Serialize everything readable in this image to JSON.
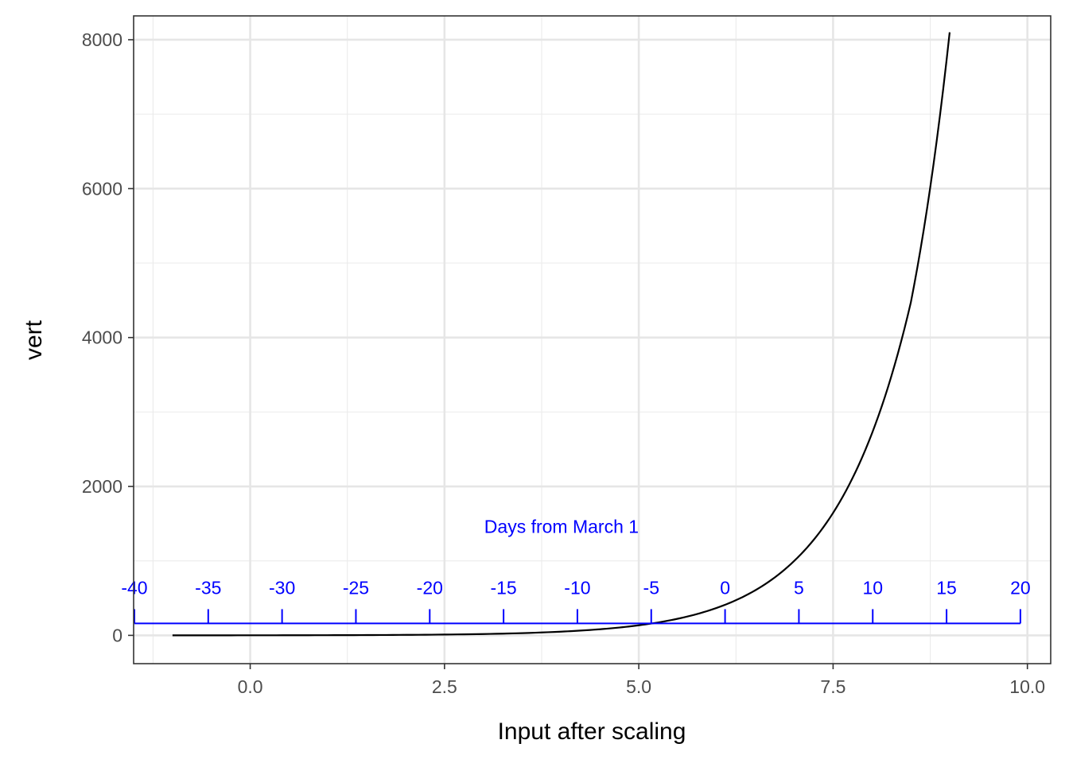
{
  "chart_data": {
    "type": "line",
    "xlabel": "Input after scaling",
    "ylabel": "vert",
    "xlim": [
      -1.5,
      10.3
    ],
    "ylim": [
      -380,
      8320
    ],
    "x_ticks": [
      0.0,
      2.5,
      5.0,
      7.5,
      10.0
    ],
    "x_tick_labels": [
      "0.0",
      "2.5",
      "5.0",
      "7.5",
      "10.0"
    ],
    "y_ticks": [
      0,
      2000,
      4000,
      6000,
      8000
    ],
    "y_tick_labels": [
      "0",
      "2000",
      "4000",
      "6000",
      "8000"
    ],
    "grid": true,
    "series": [
      {
        "color": "#000000",
        "x": [
          -1.0,
          0.0,
          1.0,
          2.0,
          3.0,
          4.0,
          4.5,
          5.0,
          5.5,
          6.0,
          6.5,
          7.0,
          7.5,
          8.0,
          8.5,
          9.0
        ],
        "y": [
          0.3,
          0.9,
          2.4,
          6.6,
          18,
          50,
          82,
          135,
          223,
          368,
          606,
          1000,
          1645,
          2712,
          4470,
          8100
        ]
      }
    ],
    "secondary_axis": {
      "title": "Days from March 1",
      "color": "#0000ff",
      "y_level": 160,
      "tick_labels": [
        "-40",
        "-35",
        "-30",
        "-25",
        "-20",
        "-15",
        "-10",
        "-5",
        "0",
        "5",
        "10",
        "15",
        "20"
      ],
      "tick_x": [
        -1.49,
        -0.54,
        0.41,
        1.36,
        2.31,
        3.26,
        4.21,
        5.16,
        6.11,
        7.06,
        8.01,
        8.96,
        9.91
      ]
    }
  }
}
